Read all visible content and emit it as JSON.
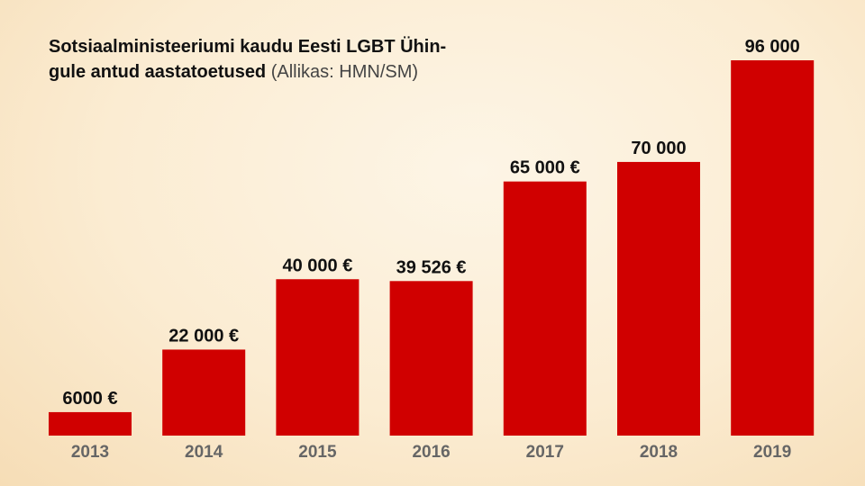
{
  "chart_data": {
    "type": "bar",
    "title": "Sotsiaalministeeriumi kaudu Eesti LGBT Ühin-gule antud aastatoetused",
    "title_line1": "Sotsiaalministeeriumi kaudu Eesti LGBT Ühin-",
    "title_line2": "gule antud aastatoetused",
    "source": "(Allikas: HMN/SM)",
    "categories": [
      "2013",
      "2014",
      "2015",
      "2016",
      "2017",
      "2018",
      "2019"
    ],
    "values": [
      6000,
      22000,
      40000,
      39526,
      65000,
      70000,
      96000
    ],
    "data_labels": [
      "6000 €",
      "22 000 €",
      "40 000 €",
      "39 526 €",
      "65 000 €",
      "70 000",
      "96 000"
    ],
    "ylim": [
      0,
      96000
    ],
    "grid": false,
    "colors": {
      "bar": "#d00000",
      "year_label": "#666666",
      "value_label": "#111111"
    }
  }
}
